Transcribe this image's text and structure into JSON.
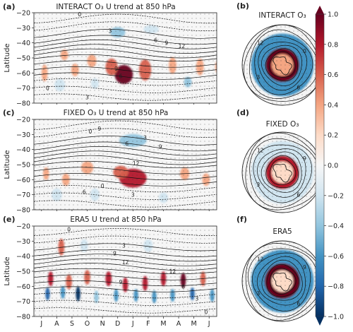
{
  "chart_data": [
    {
      "type": "heatmap",
      "panel": "(a)",
      "title": "INTERACT O₃ U trend at 850 hPa",
      "ylabel": "Latitude",
      "y_ticks": [
        -20,
        -30,
        -40,
        -50,
        -60,
        -70,
        -80
      ],
      "ylim": [
        -80,
        -20
      ],
      "x_ticks": [
        "J",
        "A",
        "S",
        "O",
        "N",
        "D",
        "J",
        "F",
        "M",
        "A",
        "M",
        "J"
      ],
      "anomalies": [
        {
          "month": 5.4,
          "lat": -61,
          "value": 1.0,
          "wm": 1.2,
          "wl": 9
        },
        {
          "month": 4.6,
          "lat": -56,
          "value": 0.6,
          "wm": 0.8,
          "wl": 8
        },
        {
          "month": 6.8,
          "lat": -58,
          "value": 0.5,
          "wm": 0.8,
          "wl": 10
        },
        {
          "month": 3.3,
          "lat": -52,
          "value": 0.4,
          "wm": 0.6,
          "wl": 6
        },
        {
          "month": 2.2,
          "lat": -58,
          "value": 0.4,
          "wm": 0.5,
          "wl": 6
        },
        {
          "month": 1.5,
          "lat": -48,
          "value": 0.3,
          "wm": 0.5,
          "wl": 5
        },
        {
          "month": 0.2,
          "lat": -60,
          "value": 0.4,
          "wm": 0.4,
          "wl": 8
        },
        {
          "month": 8.6,
          "lat": -55,
          "value": 0.45,
          "wm": 0.5,
          "wl": 8
        },
        {
          "month": 10.4,
          "lat": -56,
          "value": 0.4,
          "wm": 0.5,
          "wl": 8
        },
        {
          "month": 11.6,
          "lat": -56,
          "value": 0.3,
          "wm": 0.4,
          "wl": 6
        },
        {
          "month": 5.0,
          "lat": -33,
          "value": -0.5,
          "wm": 1.0,
          "wl": 5
        },
        {
          "month": 7.2,
          "lat": -31,
          "value": -0.3,
          "wm": 1.0,
          "wl": 4
        },
        {
          "month": 1.2,
          "lat": -68,
          "value": -0.3,
          "wm": 0.7,
          "wl": 6
        },
        {
          "month": 9.6,
          "lat": -66,
          "value": -0.35,
          "wm": 0.5,
          "wl": 5
        },
        {
          "month": 3.5,
          "lat": -67,
          "value": -0.25,
          "wm": 0.5,
          "wl": 5
        }
      ],
      "contour_labels": [
        {
          "text": "0",
          "month": 2.5,
          "lat": -21
        },
        {
          "text": "3",
          "month": 4.5,
          "lat": -32
        },
        {
          "text": "6",
          "month": 7.5,
          "lat": -38
        },
        {
          "text": "9",
          "month": 8.2,
          "lat": -40
        },
        {
          "text": "12",
          "month": 9.2,
          "lat": -42
        },
        {
          "text": "9",
          "month": 4.9,
          "lat": -57
        },
        {
          "text": "6",
          "month": 5.2,
          "lat": -62
        },
        {
          "text": "0",
          "month": 0.4,
          "lat": -70
        },
        {
          "text": "3",
          "month": 3.0,
          "lat": -76
        }
      ]
    },
    {
      "type": "heatmap",
      "panel": "(c)",
      "title": "FIXED O₃ U trend at 850 hPa",
      "ylabel": "Latitude",
      "y_ticks": [
        -20,
        -30,
        -40,
        -50,
        -60,
        -70,
        -80
      ],
      "ylim": [
        -80,
        -20
      ],
      "x_ticks": [
        "J",
        "A",
        "S",
        "O",
        "N",
        "D",
        "J",
        "F",
        "M",
        "A",
        "M",
        "J"
      ],
      "anomalies": [
        {
          "month": 6.0,
          "lat": -59,
          "value": 0.75,
          "wm": 1.8,
          "wl": 9
        },
        {
          "month": 5.2,
          "lat": -55,
          "value": 0.5,
          "wm": 1.0,
          "wl": 6
        },
        {
          "month": 3.0,
          "lat": -52,
          "value": 0.35,
          "wm": 0.8,
          "wl": 6
        },
        {
          "month": 1.6,
          "lat": -60,
          "value": 0.35,
          "wm": 0.5,
          "wl": 6
        },
        {
          "month": 0.3,
          "lat": -56,
          "value": 0.3,
          "wm": 0.4,
          "wl": 6
        },
        {
          "month": 9.4,
          "lat": -56,
          "value": 0.3,
          "wm": 0.6,
          "wl": 6
        },
        {
          "month": 10.8,
          "lat": -60,
          "value": 0.3,
          "wm": 0.5,
          "wl": 6
        },
        {
          "month": 6.0,
          "lat": -34,
          "value": -0.4,
          "wm": 1.8,
          "wl": 6
        },
        {
          "month": 1.0,
          "lat": -70,
          "value": -0.3,
          "wm": 0.7,
          "wl": 6
        },
        {
          "month": 3.5,
          "lat": -70,
          "value": -0.2,
          "wm": 0.6,
          "wl": 6
        },
        {
          "month": 8.0,
          "lat": -72,
          "value": -0.25,
          "wm": 0.6,
          "wl": 5
        }
      ],
      "contour_labels": [
        {
          "text": "9",
          "month": 3.8,
          "lat": -26
        },
        {
          "text": "0",
          "month": 3.2,
          "lat": -28
        },
        {
          "text": "3",
          "month": 6.8,
          "lat": -32
        },
        {
          "text": "6",
          "month": 5.6,
          "lat": -36
        },
        {
          "text": "9",
          "month": 7.8,
          "lat": -38
        },
        {
          "text": "12",
          "month": 6.2,
          "lat": -49
        },
        {
          "text": "0",
          "month": 4.0,
          "lat": -64
        },
        {
          "text": "3",
          "month": 6.0,
          "lat": -70
        },
        {
          "text": "6",
          "month": 2.8,
          "lat": -68
        }
      ]
    },
    {
      "type": "heatmap",
      "panel": "(e)",
      "title": "ERA5 U trend at 850 hPa",
      "ylabel": "Latitude",
      "y_ticks": [
        -20,
        -30,
        -40,
        -50,
        -60,
        -70,
        -80
      ],
      "ylim": [
        -80,
        -20
      ],
      "x_ticks": [
        "J",
        "A",
        "S",
        "O",
        "N",
        "D",
        "J",
        "F",
        "M",
        "A",
        "M",
        "J"
      ],
      "anomalies": [
        {
          "month": 0.6,
          "lat": -55,
          "value": 0.8,
          "wm": 0.35,
          "wl": 7
        },
        {
          "month": 1.8,
          "lat": -57,
          "value": 0.6,
          "wm": 0.4,
          "wl": 7
        },
        {
          "month": 3.0,
          "lat": -54,
          "value": 0.5,
          "wm": 0.4,
          "wl": 7
        },
        {
          "month": 4.4,
          "lat": -55,
          "value": 0.7,
          "wm": 0.4,
          "wl": 7
        },
        {
          "month": 5.5,
          "lat": -59,
          "value": 0.8,
          "wm": 0.35,
          "wl": 7
        },
        {
          "month": 6.8,
          "lat": -58,
          "value": 0.7,
          "wm": 0.35,
          "wl": 7
        },
        {
          "month": 8.0,
          "lat": -55,
          "value": 0.7,
          "wm": 0.35,
          "wl": 7
        },
        {
          "month": 9.3,
          "lat": -56,
          "value": 0.9,
          "wm": 0.35,
          "wl": 7
        },
        {
          "month": 10.6,
          "lat": -55,
          "value": 0.6,
          "wm": 0.35,
          "wl": 7
        },
        {
          "month": 1.3,
          "lat": -34,
          "value": 0.5,
          "wm": 0.4,
          "wl": 8
        },
        {
          "month": 0.4,
          "lat": -65,
          "value": -0.8,
          "wm": 0.3,
          "wl": 6
        },
        {
          "month": 1.4,
          "lat": -64,
          "value": -0.6,
          "wm": 0.3,
          "wl": 6
        },
        {
          "month": 2.4,
          "lat": -65,
          "value": -0.9,
          "wm": 0.3,
          "wl": 7
        },
        {
          "month": 3.6,
          "lat": -67,
          "value": -0.5,
          "wm": 0.3,
          "wl": 6
        },
        {
          "month": 4.9,
          "lat": -66,
          "value": -0.7,
          "wm": 0.3,
          "wl": 6
        },
        {
          "month": 6.2,
          "lat": -66,
          "value": -0.6,
          "wm": 0.3,
          "wl": 6
        },
        {
          "month": 7.4,
          "lat": -67,
          "value": -0.7,
          "wm": 0.3,
          "wl": 6
        },
        {
          "month": 8.6,
          "lat": -66,
          "value": -0.6,
          "wm": 0.3,
          "wl": 6
        },
        {
          "month": 9.9,
          "lat": -65,
          "value": -0.8,
          "wm": 0.3,
          "wl": 6
        },
        {
          "month": 11.2,
          "lat": -66,
          "value": -0.7,
          "wm": 0.3,
          "wl": 6
        },
        {
          "month": 2.8,
          "lat": -33,
          "value": -0.3,
          "wm": 0.5,
          "wl": 6
        },
        {
          "month": 7.0,
          "lat": -33,
          "value": -0.3,
          "wm": 0.6,
          "wl": 6
        }
      ],
      "contour_labels": [
        {
          "text": "0",
          "month": 1.8,
          "lat": -22
        },
        {
          "text": "3",
          "month": 5.4,
          "lat": -33
        },
        {
          "text": "9",
          "month": 4.8,
          "lat": -38
        },
        {
          "text": "12",
          "month": 5.5,
          "lat": -44
        },
        {
          "text": "12",
          "month": 8.6,
          "lat": -50
        },
        {
          "text": "9",
          "month": 5.2,
          "lat": -57
        },
        {
          "text": "6",
          "month": 9.3,
          "lat": -60
        },
        {
          "text": "3",
          "month": 10.2,
          "lat": -68
        },
        {
          "text": "0",
          "month": 10.8,
          "lat": -77
        }
      ]
    }
  ],
  "polar_panels": [
    {
      "label": "(b)",
      "title": "INTERACT O₃",
      "rings": [
        {
          "r": 0.78,
          "value": -0.6
        },
        {
          "r": 0.42,
          "value": 0.9
        },
        {
          "r": 0.27,
          "value": 0.3
        }
      ],
      "contour_labels": [
        "12",
        "0",
        "6",
        "3"
      ]
    },
    {
      "label": "(d)",
      "title": "FIXED O₃",
      "rings": [
        {
          "r": 0.78,
          "value": -0.2
        },
        {
          "r": 0.42,
          "value": 0.7
        },
        {
          "r": 0.27,
          "value": 0.2
        }
      ],
      "contour_labels": [
        "12",
        "9",
        "6",
        "3"
      ]
    },
    {
      "label": "(f)",
      "title": "ERA5",
      "rings": [
        {
          "r": 0.78,
          "value": -0.7
        },
        {
          "r": 0.44,
          "value": 0.9
        },
        {
          "r": 0.27,
          "value": 0.1
        }
      ],
      "contour_labels": [
        "12",
        "9",
        "6",
        "3"
      ]
    }
  ],
  "colorbar": {
    "ticks": [
      "1.0",
      "0.8",
      "0.6",
      "0.4",
      "0.2",
      "0.0",
      "−0.2",
      "−0.4",
      "−0.6",
      "−0.8",
      "−1.0"
    ],
    "vmin": -1.0,
    "vmax": 1.0,
    "colors": [
      "#053061",
      "#2166ac",
      "#4393c3",
      "#92c5de",
      "#d1e5f0",
      "#f7f7f7",
      "#fddbc7",
      "#f4a582",
      "#d6604d",
      "#b2182b",
      "#67001f"
    ]
  }
}
